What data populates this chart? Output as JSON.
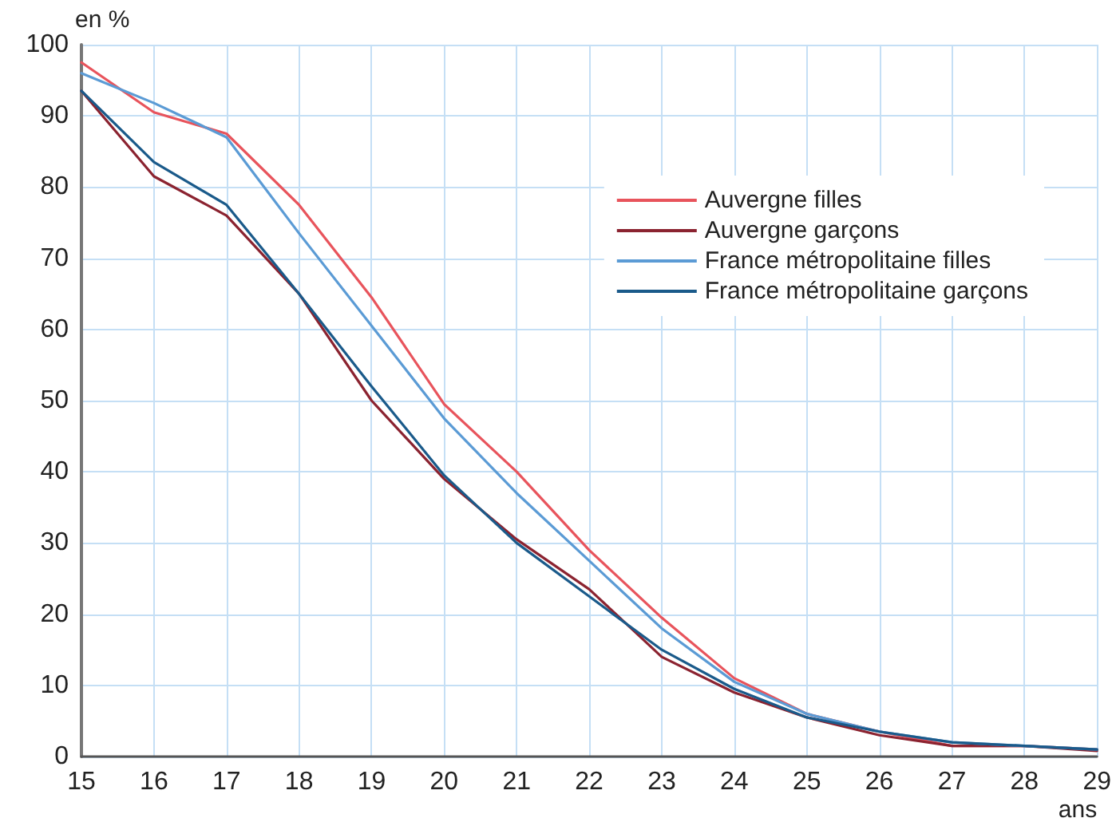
{
  "chart_data": {
    "type": "line",
    "xlabel": "ans",
    "ylabel": "en %",
    "x": [
      15,
      16,
      17,
      18,
      19,
      20,
      21,
      22,
      23,
      24,
      25,
      26,
      27,
      28,
      29
    ],
    "series": [
      {
        "name": "Auvergne filles",
        "color": "#e8545c",
        "values": [
          97.5,
          90.5,
          87.5,
          77.5,
          64.5,
          49.5,
          40,
          29,
          19.5,
          11,
          6,
          3.5,
          1.5,
          1.5,
          1
        ]
      },
      {
        "name": "Auvergne garçons",
        "color": "#8b2330",
        "values": [
          93.5,
          81.5,
          76,
          65,
          50,
          39,
          30.5,
          23.5,
          14,
          9,
          5.5,
          3,
          1.5,
          1.5,
          0.8
        ]
      },
      {
        "name": "France métropolitaine filles",
        "color": "#5b9bd5",
        "values": [
          96,
          91.8,
          87,
          73.5,
          60.5,
          47.5,
          37,
          27.5,
          18,
          10.5,
          6,
          3.5,
          2,
          1.5,
          1
        ]
      },
      {
        "name": "France métropolitaine garçons",
        "color": "#1a5a8a",
        "values": [
          93.5,
          83.5,
          77.5,
          65,
          52,
          39.5,
          30,
          22.5,
          15,
          9.5,
          5.5,
          3.5,
          2,
          1.5,
          1
        ]
      }
    ],
    "xlim": [
      15,
      29
    ],
    "xticks": [
      15,
      16,
      17,
      18,
      19,
      20,
      21,
      22,
      23,
      24,
      25,
      26,
      27,
      28,
      29
    ],
    "ylim": [
      0,
      100
    ],
    "yticks": [
      0,
      10,
      20,
      30,
      40,
      50,
      60,
      70,
      80,
      90,
      100
    ],
    "grid": true,
    "legend": "top right",
    "marker": "none",
    "line_style": "solid"
  }
}
